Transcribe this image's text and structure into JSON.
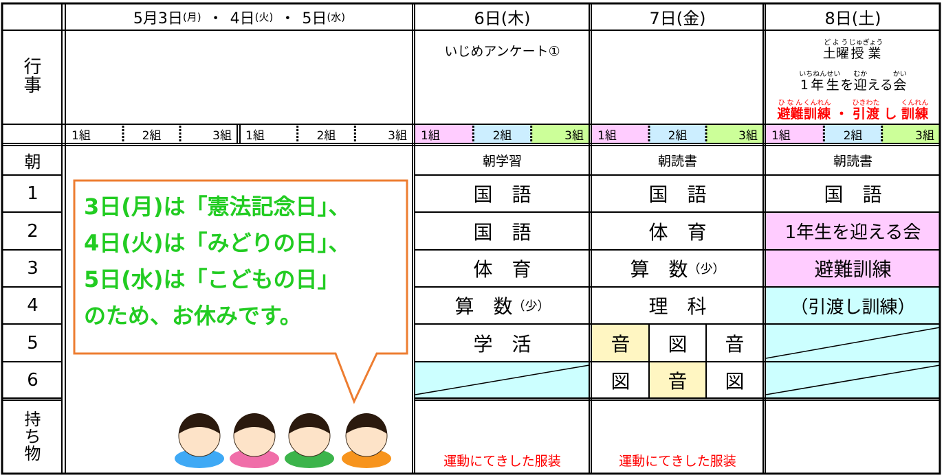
{
  "header": {
    "holiday": [
      {
        "day": "5月3日",
        "weekday": "(月)"
      },
      {
        "day": "4日",
        "weekday": "(火)"
      },
      {
        "day": "5日",
        "weekday": "(水)"
      }
    ],
    "separator": "・",
    "days": [
      "6日(木)",
      "7日(金)",
      "8日(土)"
    ]
  },
  "event_label": "行事",
  "events": {
    "day6": "いじめアンケート①",
    "day8": [
      [
        {
          "base": "土曜",
          "ruby": "どよう"
        },
        {
          "base": "授業",
          "ruby": "じゅぎょう"
        }
      ],
      [
        {
          "base": "1年生",
          "ruby": "いちねんせい"
        },
        {
          "base": "を"
        },
        {
          "base": "迎",
          "ruby": "むか"
        },
        {
          "base": "える"
        },
        {
          "base": "会",
          "ruby": "かい"
        }
      ],
      [
        {
          "base": "避難",
          "ruby": "ひなん"
        },
        {
          "base": "訓練",
          "ruby": "くんれん"
        },
        {
          "base": "・"
        },
        {
          "base": "引渡",
          "ruby": "ひきわた"
        },
        {
          "base": "し"
        },
        {
          "base": "訓練",
          "ruby": "くんれん"
        }
      ]
    ],
    "day8_colors": [
      "#000000",
      "#000000",
      "#ff0000"
    ]
  },
  "groups": [
    "1組",
    "2組",
    "3組"
  ],
  "group_colors": [
    "#ffccff",
    "#cceeff",
    "#ccff99"
  ],
  "row_labels": [
    "朝",
    "1",
    "2",
    "3",
    "4",
    "5",
    "6"
  ],
  "belongings_label": "持ち物",
  "schedule": [
    {
      "periods": [
        {
          "text": "朝学習"
        },
        {
          "text": "国　語"
        },
        {
          "text": "国　語"
        },
        {
          "text": "体　育"
        },
        {
          "text": "算　数",
          "note": "（少）"
        },
        {
          "text": "学　活"
        },
        {
          "color": "#ccffff",
          "diagonal": true
        }
      ],
      "belongings": "運動にてきした服装"
    },
    {
      "periods": [
        {
          "text": "朝読書"
        },
        {
          "text": "国　語"
        },
        {
          "text": "体　育"
        },
        {
          "text": "算　数",
          "note": "（少）"
        },
        {
          "text": "理　科"
        },
        {
          "parts": [
            "音",
            "図",
            "音"
          ],
          "colors": [
            "#fff6c2",
            "#ffffff",
            "#ffffff"
          ]
        },
        {
          "parts": [
            "図",
            "音",
            "図"
          ],
          "colors": [
            "#ffffff",
            "#fff6c2",
            "#ffffff"
          ]
        }
      ],
      "belongings": "運動にてきした服装"
    },
    {
      "periods": [
        {
          "text": "朝読書"
        },
        {
          "text": "国　語"
        },
        {
          "text": "1年生を迎える会",
          "color": "#ffccff"
        },
        {
          "text": "避難訓練",
          "color": "#ffccff"
        },
        {
          "text": "（引渡し訓練）",
          "color": "#ccffff"
        },
        {
          "color": "#ccffff",
          "diagonal": true
        },
        {
          "color": "#ccffff",
          "diagonal": true
        }
      ]
    }
  ],
  "notice": {
    "lines": [
      "3日(月)は「憲法記念日」、",
      "4日(火)は「みどりの日」、",
      "5日(水)は「こどもの日」",
      "のため、お休みです。"
    ],
    "text_color": "#22cc22",
    "border_color": "#ed7d31"
  },
  "belongings_color": "#ff0000"
}
